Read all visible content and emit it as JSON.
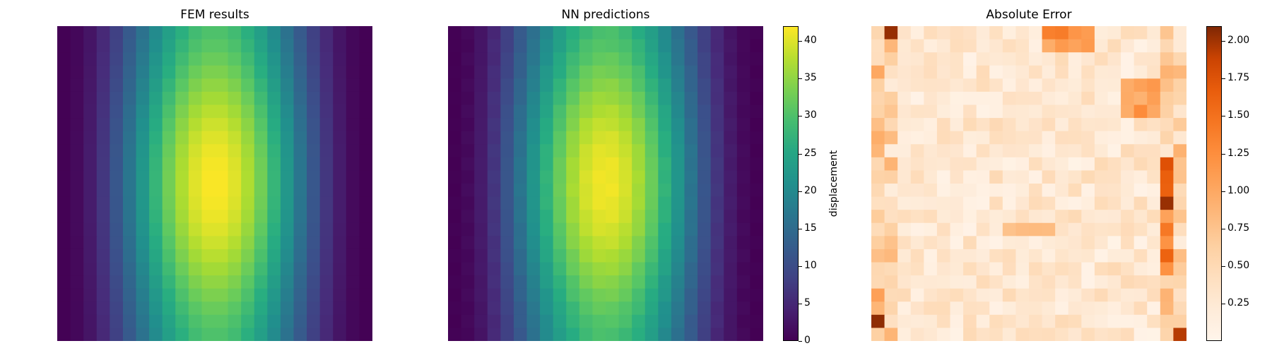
{
  "chart_data": [
    {
      "type": "heatmap",
      "title": "FEM results",
      "field": "displacement",
      "grid_size": [
        24,
        24
      ],
      "colormap": "viridis",
      "value_range": [
        0,
        42
      ],
      "model": "peak at center, smooth horizontal cosine variation with mild vertical falloff"
    },
    {
      "type": "heatmap",
      "title": "NN predictions",
      "field": "displacement",
      "grid_size": [
        24,
        24
      ],
      "colormap": "viridis",
      "value_range": [
        0,
        42
      ],
      "colorbar": {
        "label": "displacement",
        "ticks": [
          0,
          5,
          10,
          15,
          20,
          25,
          30,
          35,
          40
        ]
      }
    },
    {
      "type": "heatmap",
      "title": "Absolute Error",
      "grid_size": [
        24,
        24
      ],
      "colormap": "oranges",
      "value_range": [
        0,
        2.1
      ],
      "colorbar": {
        "label": "",
        "ticks": [
          0.25,
          0.5,
          0.75,
          1.0,
          1.25,
          1.5,
          1.75,
          2.0
        ],
        "tick_labels": [
          "0.25",
          "0.50",
          "0.75",
          "1.00",
          "1.25",
          "1.50",
          "1.75",
          "2.00"
        ]
      }
    }
  ]
}
